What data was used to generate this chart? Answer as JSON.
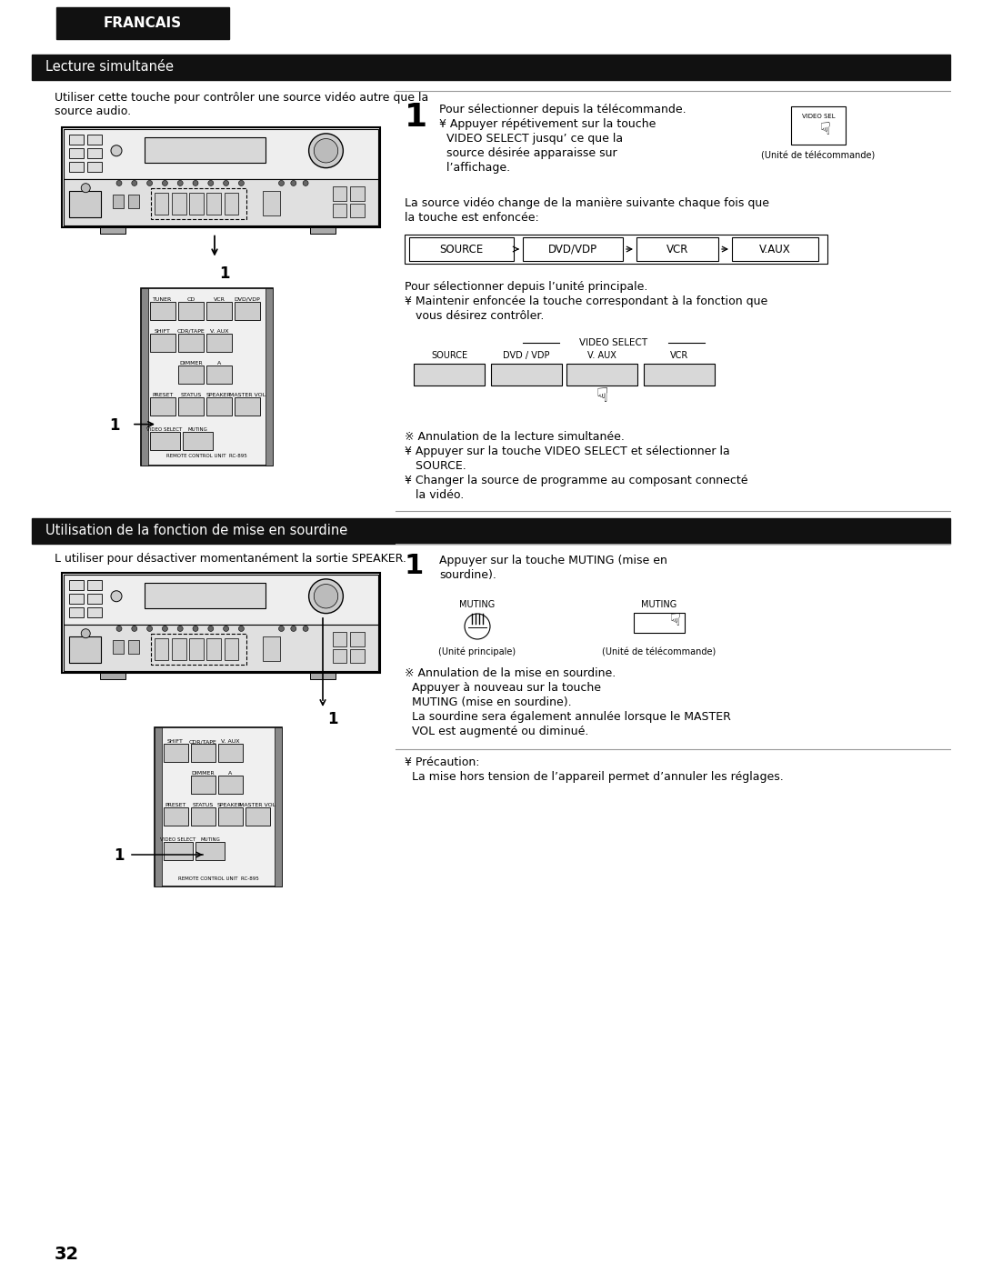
{
  "page_bg": "#ffffff",
  "header_bg": "#111111",
  "header_text": "FRANCAIS",
  "section1_title": "Lecture simultanée",
  "section2_title": "Utilisation de la fonction de mise en sourdine",
  "section1_desc1": "Utiliser cette touche pour contrôler une source vidéo autre que la",
  "section1_desc2": "source audio.",
  "section2_desc": "L utiliser pour désactiver momentanément la sortie SPEAKER.",
  "step1_s1_line1": "Pour sélectionner depuis la télécommande.",
  "step1_s1_line2": "¥ Appuyer répétivement sur la touche",
  "step1_s1_line3": "  VIDEO SELECT jusqu’ ce que la",
  "step1_s1_line4": "  source désirée apparaisse sur",
  "step1_s1_line5": "  l’affichage.",
  "unit_remote_caption": "(Unité de télécommande)",
  "src_change1": "La source vidéo change de la manière suivante chaque fois que",
  "src_change2": "la touche est enfoncée:",
  "src_labels": [
    "SOURCE",
    "DVD/VDP",
    "VCR",
    "V.AUX"
  ],
  "main_unit1": "Pour sélectionner depuis l’unité principale.",
  "main_unit2": "¥ Maintenir enfoncée la touche correspondant à la fonction que",
  "main_unit3": "   vous désirez contrôler.",
  "vs_label": "VIDEO SELECT",
  "vs_src_labels": [
    "SOURCE",
    "DVD / VDP",
    "V. AUX",
    "VCR"
  ],
  "ann1": "※ Annulation de la lecture simultanée.",
  "ann2": "¥ Appuyer sur la touche VIDEO SELECT et sélectionner la",
  "ann3": "   SOURCE.",
  "ann4": "¥ Changer la source de programme au composant connecté",
  "ann5": "   la vidéo.",
  "s2_step1_line1": "Appuyer sur la touche MUTING (mise en",
  "s2_step1_line2": "sourdine).",
  "muting_label": "MUTING",
  "unit_principale_caption": "(Unité principale)",
  "s2_ann1": "※ Annulation de la mise en sourdine.",
  "s2_ann2": "  Appuyer à nouveau sur la touche",
  "s2_ann3": "  MUTING (mise en sourdine).",
  "s2_ann4": "  La sourdine sera également annulée lorsque le MASTER",
  "s2_ann5": "  VOL est augmenté ou diminué.",
  "s2_caution1": "¥ Précaution:",
  "s2_caution2": "  La mise hors tension de l’appareil permet d’annuler les réglages.",
  "remote_label": "REMOTE CONTROL UNIT  RC-895",
  "page_number": "32"
}
